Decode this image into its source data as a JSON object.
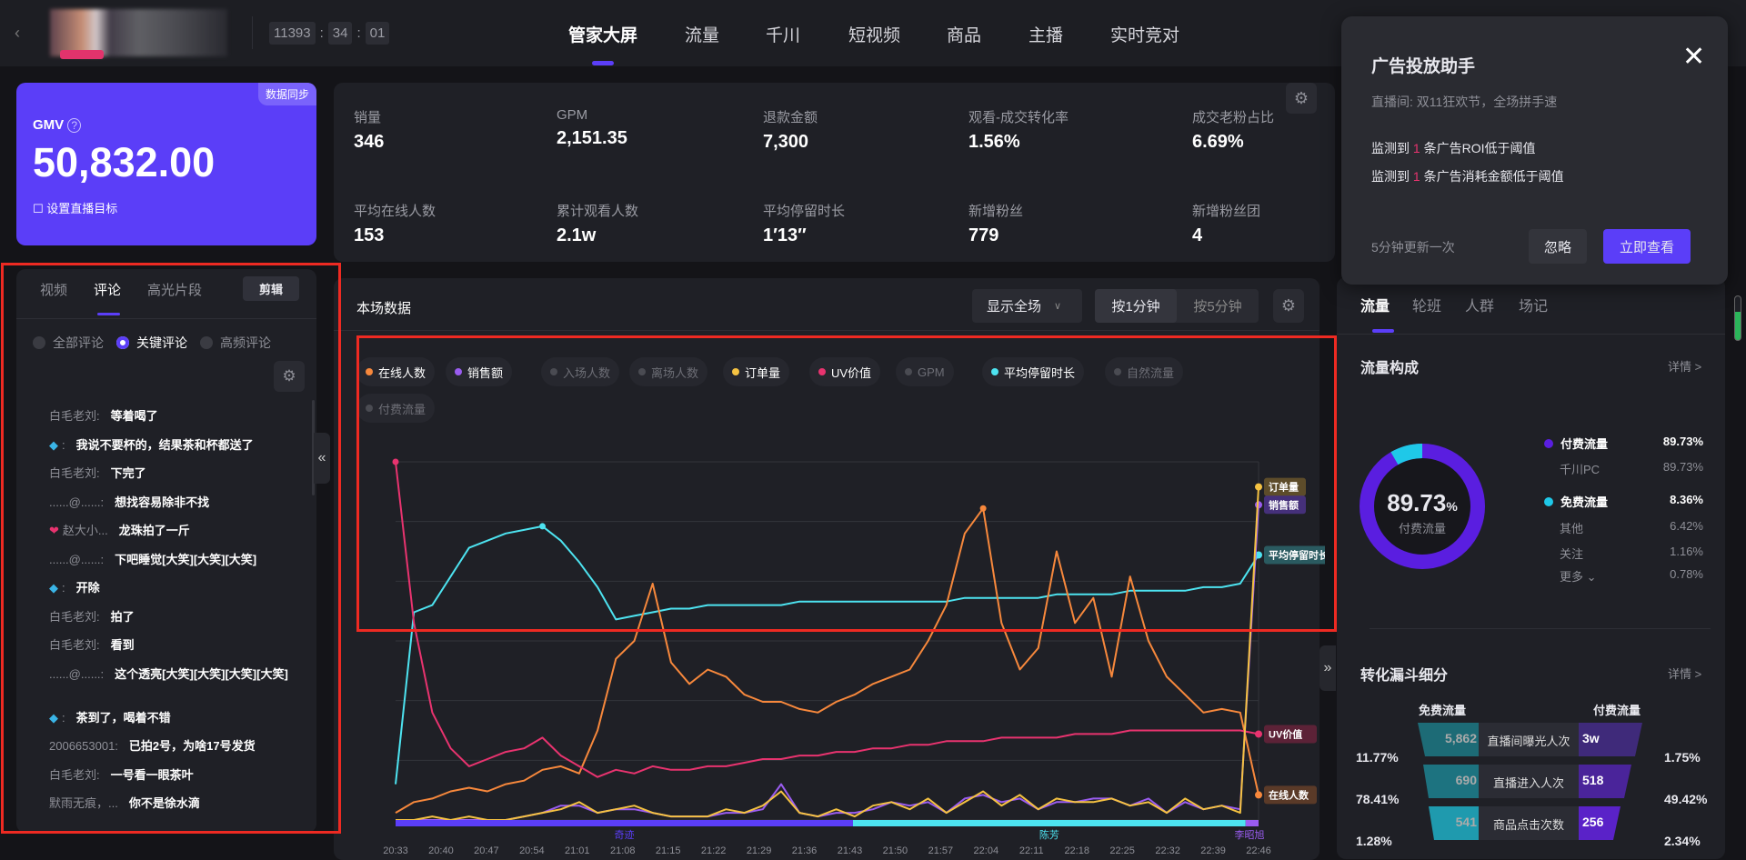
{
  "header": {
    "timer": [
      "11393",
      "34",
      "01"
    ],
    "tabs": [
      "管家大屏",
      "流量",
      "千川",
      "短视频",
      "商品",
      "主播",
      "实时竞对"
    ],
    "active_tab": 0
  },
  "gmv": {
    "sync_tag": "数据同步",
    "label": "GMV",
    "value": "50,832.00",
    "set_goal": "设置直播目标"
  },
  "metrics": [
    {
      "label": "销量",
      "value": "346"
    },
    {
      "label": "GPM",
      "value": "2,151.35"
    },
    {
      "label": "退款金额",
      "value": "7,300"
    },
    {
      "label": "观看-成交转化率",
      "value": "1.56%"
    },
    {
      "label": "成交老粉占比",
      "value": "6.69%"
    },
    {
      "label": "平均在线人数",
      "value": "153"
    },
    {
      "label": "累计观看人数",
      "value": "2.1w"
    },
    {
      "label": "平均停留时长",
      "value": "1′13″"
    },
    {
      "label": "新增粉丝",
      "value": "779"
    },
    {
      "label": "新增粉丝团",
      "value": "4"
    }
  ],
  "popup": {
    "title": "广告投放助手",
    "subtitle": "直播间: 双11狂欢节，全场拼手速",
    "line1_pre": "监测到",
    "line1_num": "1",
    "line1_post": "条广告ROI低于阈值",
    "line2_pre": "监测到",
    "line2_num": "1",
    "line2_post": "条广告消耗金额低于阈值",
    "footer": "5分钟更新一次",
    "ignore": "忽略",
    "view": "立即查看"
  },
  "comments_panel": {
    "tabs": [
      "视频",
      "评论",
      "高光片段"
    ],
    "edit": "剪辑",
    "filters": [
      "全部评论",
      "关键评论",
      "高频评论"
    ],
    "items": [
      {
        "name": "白毛老刘:",
        "text": "等着喝了"
      },
      {
        "name": ":",
        "text": "我说不要杯的，结果茶和杯都送了",
        "badge": "fish"
      },
      {
        "name": "白毛老刘:",
        "text": "下完了"
      },
      {
        "name": "......@......:",
        "text": "想找容易除非不找"
      },
      {
        "name": "赵大小...",
        "text": "龙珠拍了一斤",
        "badge": "heart"
      },
      {
        "name": "......@......:",
        "text": "下吧睡觉[大笑][大笑][大笑]"
      },
      {
        "name": ":",
        "text": "开除",
        "badge": "fish"
      },
      {
        "name": "白毛老刘:",
        "text": "拍了"
      },
      {
        "name": "白毛老刘:",
        "text": "看到"
      },
      {
        "name": "......@......:",
        "text": "这个透亮[大笑][大笑][大笑][大笑]"
      },
      {
        "name": ":",
        "text": "茶到了，喝着不错",
        "badge": "fish"
      },
      {
        "name": "2006653001:",
        "text": "已拍2号，为啥17号发货"
      },
      {
        "name": "白毛老刘:",
        "text": "一号看一眼茶叶"
      },
      {
        "name": "默雨无痕，...",
        "text": "你不是徐水滴"
      }
    ]
  },
  "chart_panel": {
    "title": "本场数据",
    "range": "显示全场",
    "interval": [
      "按1分钟",
      "按5分钟"
    ]
  },
  "chart_data": {
    "type": "line",
    "title": "本场数据",
    "ylim": [
      0,
      100
    ],
    "y_unit": "relative % of axis",
    "legend": [
      {
        "name": "在线人数",
        "color": "#f7883c",
        "on": true
      },
      {
        "name": "销售额",
        "color": "#9a5cf0",
        "on": true
      },
      {
        "name": "入场人数",
        "color": "#4a4b52",
        "on": false
      },
      {
        "name": "离场人数",
        "color": "#4a4b52",
        "on": false
      },
      {
        "name": "订单量",
        "color": "#f5c242",
        "on": true
      },
      {
        "name": "UV价值",
        "color": "#e8336f",
        "on": true
      },
      {
        "name": "GPM",
        "color": "#4a4b52",
        "on": false
      },
      {
        "name": "平均停留时长",
        "color": "#4de3f0",
        "on": true
      },
      {
        "name": "自然流量",
        "color": "#4a4b52",
        "on": false
      },
      {
        "name": "付费流量",
        "color": "#4a4b52",
        "on": false
      }
    ],
    "x_ticks": [
      "20:33",
      "20:40",
      "20:47",
      "20:54",
      "21:01",
      "21:08",
      "21:15",
      "21:22",
      "21:29",
      "21:36",
      "21:43",
      "21:50",
      "21:57",
      "22:04",
      "22:11",
      "22:18",
      "22:25",
      "22:32",
      "22:39",
      "22:46"
    ],
    "series": [
      {
        "name": "平均停留时长",
        "color": "#4de3f0",
        "values": [
          10,
          58,
          60,
          68,
          76,
          78,
          80,
          81,
          82,
          78,
          72,
          65,
          56,
          57,
          58,
          59,
          59,
          60,
          60,
          60,
          60,
          60,
          61,
          61,
          61,
          61,
          61,
          61,
          61,
          61,
          61,
          62,
          62,
          62,
          62,
          62,
          63,
          63,
          63,
          63,
          64,
          64,
          64,
          64,
          65,
          65,
          66,
          74
        ]
      },
      {
        "name": "在线人数",
        "color": "#f7883c",
        "values": [
          2,
          5,
          6,
          8,
          9,
          8,
          10,
          11,
          14,
          15,
          13,
          25,
          45,
          50,
          66,
          44,
          38,
          42,
          40,
          35,
          33,
          33,
          31,
          30,
          33,
          35,
          38,
          40,
          42,
          50,
          60,
          80,
          87,
          55,
          42,
          48,
          75,
          55,
          62,
          40,
          68,
          50,
          40,
          35,
          30,
          31,
          30,
          7
        ]
      },
      {
        "name": "UV价值",
        "color": "#e8336f",
        "values": [
          100,
          55,
          30,
          20,
          15,
          17,
          19,
          20,
          23,
          18,
          15,
          12,
          14,
          13,
          15,
          14,
          14,
          15,
          15,
          16,
          17,
          17,
          18,
          18,
          19,
          19,
          20,
          20,
          21,
          21,
          22,
          22,
          22,
          23,
          23,
          23,
          23,
          24,
          24,
          24,
          25,
          25,
          25,
          25,
          25,
          25,
          25,
          24
        ]
      },
      {
        "name": "销售额",
        "color": "#9a5cf0",
        "values": [
          0,
          0,
          0,
          0,
          0,
          0,
          0,
          1,
          2,
          4,
          4,
          2,
          3,
          3,
          2,
          1,
          1,
          1,
          2,
          2,
          3,
          10,
          2,
          1,
          2,
          2,
          3,
          5,
          4,
          5,
          2,
          6,
          7,
          5,
          6,
          3,
          5,
          5,
          6,
          6,
          4,
          6,
          2,
          5,
          3,
          4,
          3,
          88
        ]
      },
      {
        "name": "订单量",
        "color": "#f5c242",
        "values": [
          0,
          0,
          1,
          0,
          1,
          0,
          0,
          1,
          2,
          3,
          5,
          2,
          3,
          4,
          2,
          1,
          1,
          1,
          3,
          2,
          4,
          8,
          2,
          1,
          3,
          1,
          4,
          5,
          3,
          6,
          2,
          5,
          8,
          4,
          7,
          3,
          6,
          5,
          5,
          6,
          4,
          5,
          2,
          6,
          3,
          4,
          2,
          93
        ]
      }
    ],
    "end_labels": [
      "订单量",
      "销售额",
      "平均停留时长",
      "UV价值",
      "在线人数"
    ],
    "anchors": [
      {
        "name": "奇迹",
        "color": "#5b3ef8",
        "from": 0,
        "to": 0.53
      },
      {
        "name": "陈芳",
        "color": "#4de3f0",
        "from": 0.53,
        "to": 0.985
      },
      {
        "name": "李昭旭",
        "color": "#9a5cf0",
        "from": 0.985,
        "to": 1
      }
    ]
  },
  "right_panel": {
    "tabs": [
      "流量",
      "轮班",
      "人群",
      "场记"
    ],
    "traffic_title": "流量构成",
    "detail": "详情 >",
    "donut_value": "89.73",
    "donut_pct": "%",
    "donut_label": "付费流量",
    "donut": {
      "paid": 89.73,
      "free": 8.36,
      "paid_color": "#5a1ee0",
      "free_color": "#1fc8e8"
    },
    "legend": [
      {
        "label": "付费流量",
        "value": "89.73%",
        "main": true,
        "color": "#5a1ee0"
      },
      {
        "label": "千川PC",
        "value": "89.73%"
      },
      {
        "label": "免费流量",
        "value": "8.36%",
        "main": true,
        "color": "#1fc8e8"
      },
      {
        "label": "其他",
        "value": "6.42%"
      },
      {
        "label": "关注",
        "value": "1.16%"
      },
      {
        "label": "更多 ⌄",
        "value": "0.78%"
      }
    ],
    "funnel_title": "转化漏斗细分",
    "funnel_free": "免费流量",
    "funnel_paid": "付费流量",
    "funnel": [
      {
        "free": "5,862",
        "label": "直播间曝光人次",
        "paid": "3w"
      },
      {
        "free": "690",
        "label": "直播进入人次",
        "paid": "518"
      },
      {
        "free": "541",
        "label": "商品点击次数",
        "paid": "256"
      }
    ],
    "left_rates": [
      "11.77%",
      "78.41%",
      "1.28%"
    ],
    "right_rates": [
      "1.75%",
      "49.42%",
      "2.34%"
    ]
  }
}
